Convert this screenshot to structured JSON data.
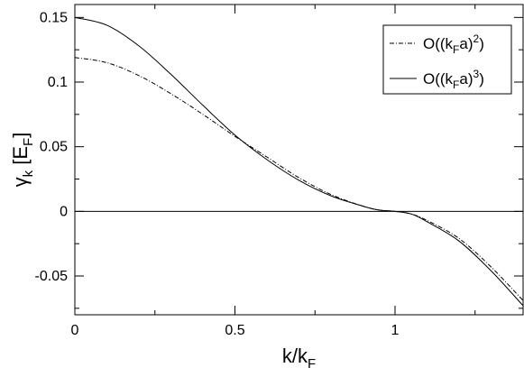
{
  "chart_data": {
    "type": "line",
    "xlabel": {
      "main": "k/k",
      "sub": "F"
    },
    "ylabel": {
      "symbol": "γ",
      "sub": "k",
      "mid": " [E",
      "unit_sub": "F",
      "close": "]"
    },
    "xlim": [
      0,
      1.4
    ],
    "ylim": [
      -0.08,
      0.16
    ],
    "x_ticks": [
      {
        "value": 0,
        "label": "0"
      },
      {
        "value": 0.5,
        "label": "0.5"
      },
      {
        "value": 1,
        "label": "1"
      }
    ],
    "y_ticks": [
      {
        "value": -0.05,
        "label": "-0.05"
      },
      {
        "value": 0,
        "label": "0"
      },
      {
        "value": 0.05,
        "label": "0.05"
      },
      {
        "value": 0.1,
        "label": "0.1"
      },
      {
        "value": 0.15,
        "label": "0.15"
      }
    ],
    "zero_line": true,
    "legend_position": "top-right",
    "series": [
      {
        "name": {
          "prefix": "O((k",
          "sub": "F",
          "mid": "a)",
          "sup": "2",
          "suffix": ")"
        },
        "style": "dash-dot",
        "x": [
          0,
          0.1,
          0.2,
          0.3,
          0.4,
          0.5,
          0.6,
          0.7,
          0.8,
          0.9,
          0.95,
          1.0,
          1.05,
          1.1,
          1.2,
          1.3,
          1.4
        ],
        "y": [
          0.119,
          0.115,
          0.105,
          0.091,
          0.075,
          0.058,
          0.042,
          0.026,
          0.013,
          0.004,
          0.001,
          0.0,
          -0.002,
          -0.007,
          -0.021,
          -0.043,
          -0.069
        ]
      },
      {
        "name": {
          "prefix": "O((k",
          "sub": "F",
          "mid": "a)",
          "sup": "3",
          "suffix": ")"
        },
        "style": "solid",
        "x": [
          0,
          0.1,
          0.2,
          0.3,
          0.4,
          0.5,
          0.6,
          0.7,
          0.8,
          0.9,
          0.95,
          1.0,
          1.05,
          1.1,
          1.2,
          1.3,
          1.4
        ],
        "y": [
          0.15,
          0.144,
          0.128,
          0.106,
          0.082,
          0.059,
          0.04,
          0.024,
          0.012,
          0.004,
          0.001,
          0.0,
          -0.002,
          -0.008,
          -0.023,
          -0.046,
          -0.073
        ]
      }
    ]
  }
}
